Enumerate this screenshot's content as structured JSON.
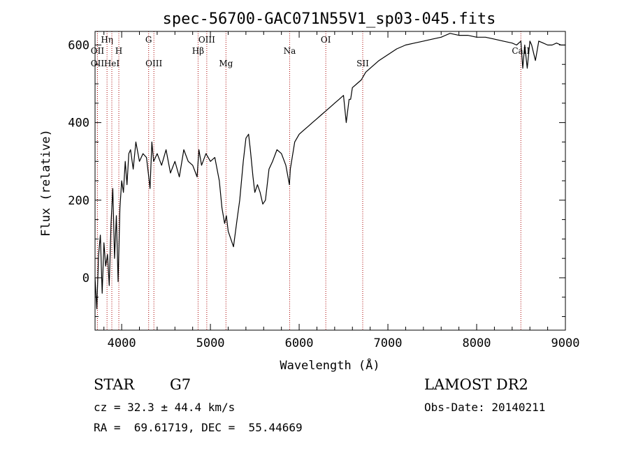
{
  "title": "spec-56700-GAC071N55V1_sp03-045.fits",
  "footer": {
    "class_label": "STAR",
    "subclass": "G7",
    "cz": "cz = 32.3 ± 44.4 km/s",
    "coords": "RA =  69.61719, DEC =  55.44669",
    "survey": "LAMOST DR2",
    "obs_date": "Obs-Date: 20140211"
  },
  "colors": {
    "spectrum": "#000000",
    "marker_lines": "#aa0000",
    "background": "#ffffff"
  },
  "chart_data": {
    "type": "line",
    "title": "spec-56700-GAC071N55V1_sp03-045.fits",
    "xlabel": "Wavelength (Å)",
    "ylabel": "Flux (relative)",
    "xlim": [
      3700,
      9000
    ],
    "ylim": [
      -135,
      635
    ],
    "xticks": [
      4000,
      5000,
      6000,
      7000,
      8000,
      9000
    ],
    "yticks": [
      0,
      200,
      400,
      600
    ],
    "grid": false,
    "legend": "none",
    "series": [
      {
        "x": [
          3700,
          3720,
          3740,
          3760,
          3780,
          3800,
          3820,
          3840,
          3860,
          3880,
          3900,
          3920,
          3940,
          3960,
          3980,
          4000,
          4020,
          4040,
          4060,
          4080,
          4100,
          4130,
          4160,
          4200,
          4240,
          4280,
          4300,
          4320,
          4340,
          4360,
          4400,
          4450,
          4500,
          4550,
          4600,
          4650,
          4700,
          4750,
          4800,
          4850,
          4870,
          4900,
          4950,
          5000,
          5050,
          5100,
          5130,
          5160,
          5180,
          5200,
          5230,
          5260,
          5300,
          5330,
          5370,
          5400,
          5430,
          5450,
          5480,
          5500,
          5530,
          5560,
          5590,
          5620,
          5660,
          5700,
          5750,
          5800,
          5850,
          5890,
          5900,
          5950,
          6000,
          6050,
          6100,
          6150,
          6200,
          6250,
          6300,
          6350,
          6400,
          6450,
          6500,
          6530,
          6563,
          6580,
          6600,
          6650,
          6700,
          6750,
          6800,
          6900,
          7000,
          7100,
          7200,
          7300,
          7400,
          7500,
          7600,
          7700,
          7800,
          7900,
          8000,
          8100,
          8200,
          8300,
          8400,
          8450,
          8498,
          8520,
          8542,
          8570,
          8600,
          8620,
          8662,
          8700,
          8750,
          8800,
          8850,
          8900,
          8950,
          9000
        ],
        "values": [
          0,
          -80,
          60,
          110,
          -40,
          90,
          30,
          60,
          -20,
          140,
          230,
          50,
          160,
          -10,
          180,
          250,
          220,
          300,
          240,
          320,
          330,
          280,
          350,
          300,
          320,
          310,
          270,
          230,
          350,
          300,
          320,
          290,
          330,
          270,
          300,
          260,
          330,
          300,
          290,
          260,
          330,
          290,
          320,
          300,
          310,
          250,
          180,
          140,
          160,
          120,
          100,
          80,
          150,
          200,
          300,
          360,
          370,
          330,
          260,
          220,
          240,
          220,
          190,
          200,
          280,
          300,
          330,
          320,
          290,
          240,
          280,
          350,
          370,
          380,
          390,
          400,
          410,
          420,
          430,
          440,
          450,
          460,
          470,
          400,
          460,
          460,
          490,
          500,
          510,
          530,
          540,
          560,
          575,
          590,
          600,
          605,
          610,
          615,
          620,
          630,
          625,
          625,
          620,
          620,
          615,
          610,
          605,
          600,
          610,
          540,
          600,
          540,
          610,
          600,
          560,
          610,
          605,
          600,
          600,
          605,
          600,
          600
        ]
      }
    ],
    "line_markers": [
      {
        "label": "OII",
        "wavelength": 3727,
        "row": 1
      },
      {
        "label": "OII",
        "wavelength": 3727,
        "row": 2
      },
      {
        "label": "Hη",
        "wavelength": 3835,
        "row": 0
      },
      {
        "label": "HeI",
        "wavelength": 3889,
        "row": 2
      },
      {
        "label": "H",
        "wavelength": 3968,
        "row": 1
      },
      {
        "label": "G",
        "wavelength": 4304,
        "row": 0
      },
      {
        "label": "OIII",
        "wavelength": 4363,
        "row": 2
      },
      {
        "label": "Hβ",
        "wavelength": 4861,
        "row": 1
      },
      {
        "label": "OIII",
        "wavelength": 4959,
        "row": 0
      },
      {
        "label": "Mg",
        "wavelength": 5175,
        "row": 2
      },
      {
        "label": "Na",
        "wavelength": 5893,
        "row": 1
      },
      {
        "label": "OI",
        "wavelength": 6300,
        "row": 0
      },
      {
        "label": "SII",
        "wavelength": 6716,
        "row": 2
      },
      {
        "label": "CaII",
        "wavelength": 8498,
        "row": 1
      }
    ]
  }
}
